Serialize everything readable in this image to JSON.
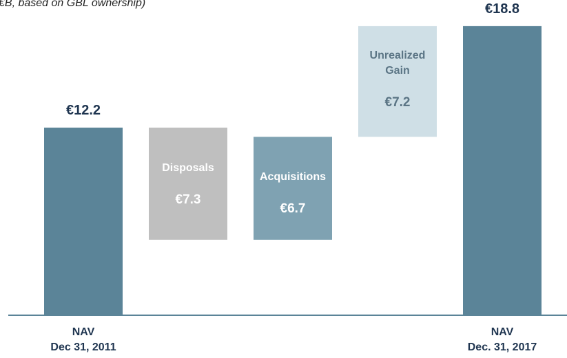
{
  "chart_data": {
    "type": "waterfall",
    "subtitle": "€B, based on GBL ownership)",
    "categories": [
      "NAV\nDec 31, 2011",
      "Disposals",
      "Acquisitions",
      "Unrealized\nGain",
      "NAV\nDec. 31, 2017"
    ],
    "values": [
      12.2,
      -7.3,
      6.7,
      7.2,
      18.8
    ],
    "value_labels": [
      "€12.2",
      "€7.3",
      "€6.7",
      "€7.2",
      "€18.8"
    ],
    "colors": [
      "#5b8498",
      "#bfbfbf",
      "#7fa2b2",
      "#cfdfe6",
      "#5b8498"
    ],
    "ylim": [
      0,
      20.5
    ]
  }
}
